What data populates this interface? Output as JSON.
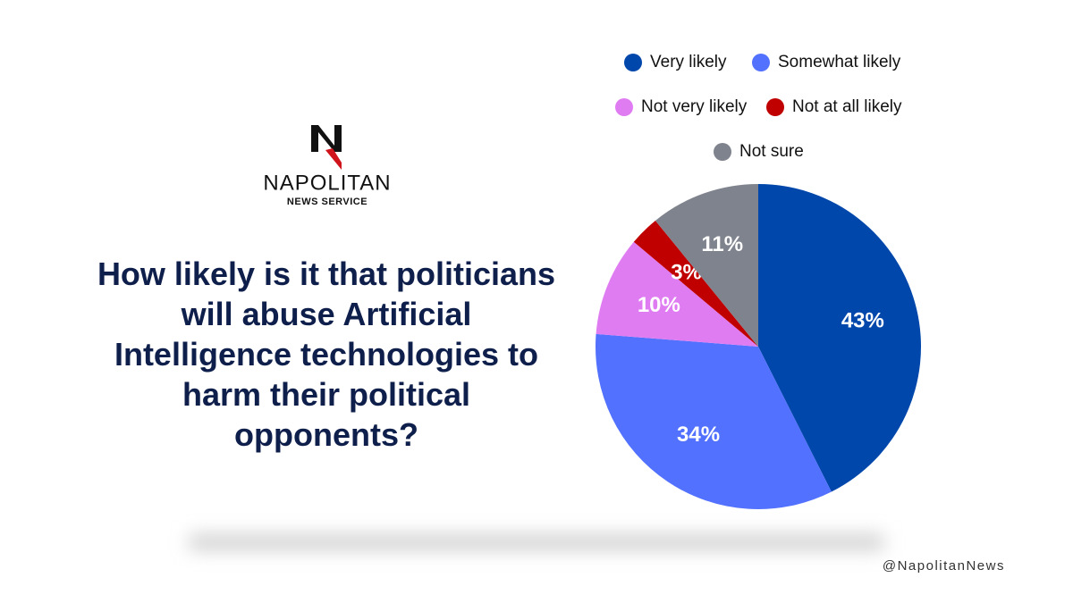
{
  "brand": {
    "name": "NAPOLITAN",
    "subtitle": "NEWS SERVICE",
    "handle": "@NapolitanNews"
  },
  "chart_data": {
    "type": "pie",
    "title": "How likely is it that politicians will abuse Artificial Intelligence technologies to harm their political opponents?",
    "categories": [
      "Very likely",
      "Somewhat likely",
      "Not very likely",
      "Not at all likely",
      "Not sure"
    ],
    "values": [
      43,
      34,
      10,
      3,
      11
    ],
    "value_labels": [
      "43%",
      "34%",
      "10%",
      "3%",
      "11%"
    ],
    "colors": [
      "#0047ab",
      "#5271ff",
      "#e07cf2",
      "#c00000",
      "#7f838d"
    ]
  }
}
